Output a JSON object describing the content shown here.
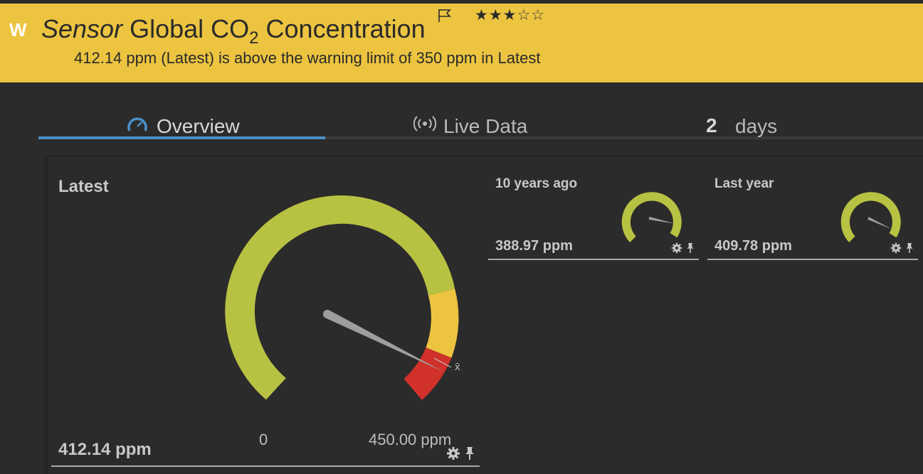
{
  "banner": {
    "logo": "W",
    "title_kind": "Sensor",
    "title_main": "Global CO",
    "title_sub": "2",
    "title_end": " Concentration",
    "rating_filled": "★★★",
    "rating_empty": "☆☆",
    "warning": "412.14 ppm (Latest) is above the warning limit of 350 ppm in Latest",
    "color": "#ecc440"
  },
  "tabs": {
    "overview": "Overview",
    "live": "Live Data",
    "days_num": "2",
    "days_label": "days",
    "active_color": "#4a90c8"
  },
  "gauges": {
    "latest": {
      "label": "Latest",
      "value": "412.14 ppm",
      "min_label": "0",
      "max_label": "450.00 ppm",
      "mean_marker": "x̄",
      "reading": 412.14,
      "max": 450.0,
      "colors": {
        "ok": "#b8c242",
        "warning": "#ecc440",
        "danger": "#d0312a"
      }
    },
    "ten_years": {
      "label": "10 years ago",
      "value": "388.97 ppm",
      "reading": 388.97
    },
    "last_year": {
      "label": "Last year",
      "value": "409.78 ppm",
      "reading": 409.78
    }
  },
  "icons": {
    "gauge": "gauge-icon",
    "live": "broadcast-icon",
    "flag": "flag-icon",
    "settings": "gear-icon",
    "pin": "pin-icon"
  }
}
